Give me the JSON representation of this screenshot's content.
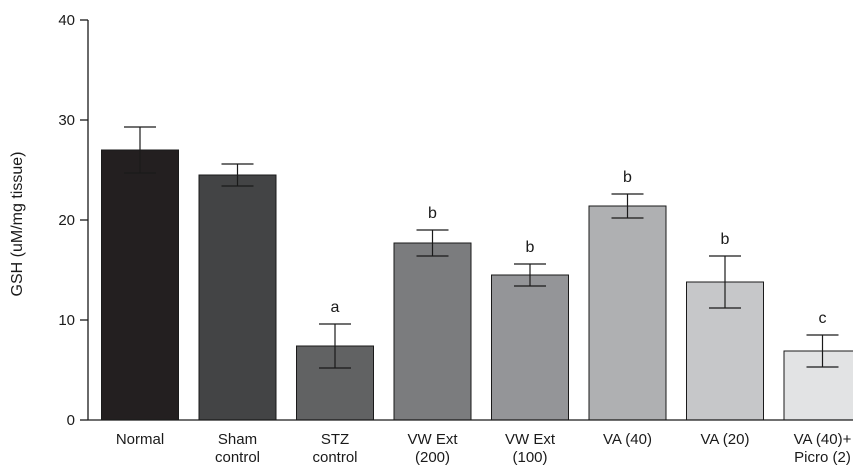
{
  "chart_data": {
    "type": "bar",
    "ylabel": "GSH (uM/mg tissue)",
    "ylim": [
      0,
      40
    ],
    "yticks": [
      0,
      10,
      20,
      30,
      40
    ],
    "grid": false,
    "categories": [
      [
        "Normal"
      ],
      [
        "Sham",
        "control"
      ],
      [
        "STZ",
        "control"
      ],
      [
        "VW Ext",
        "(200)"
      ],
      [
        "VW Ext",
        "(100)"
      ],
      [
        "VA (40)"
      ],
      [
        "VA (20)"
      ],
      [
        "VA (40)+",
        "Picro (2)"
      ]
    ],
    "values": [
      27.0,
      24.5,
      7.4,
      17.7,
      14.5,
      21.4,
      13.8,
      6.9
    ],
    "errors": [
      2.3,
      1.1,
      2.2,
      1.3,
      1.1,
      1.2,
      2.6,
      1.6
    ],
    "significance": [
      "",
      "",
      "a",
      "b",
      "b",
      "b",
      "b",
      "c"
    ],
    "colors": [
      "#231f20",
      "#434445",
      "#616263",
      "#7b7c7e",
      "#949598",
      "#afb0b2",
      "#c6c7c9",
      "#e2e3e4"
    ]
  }
}
